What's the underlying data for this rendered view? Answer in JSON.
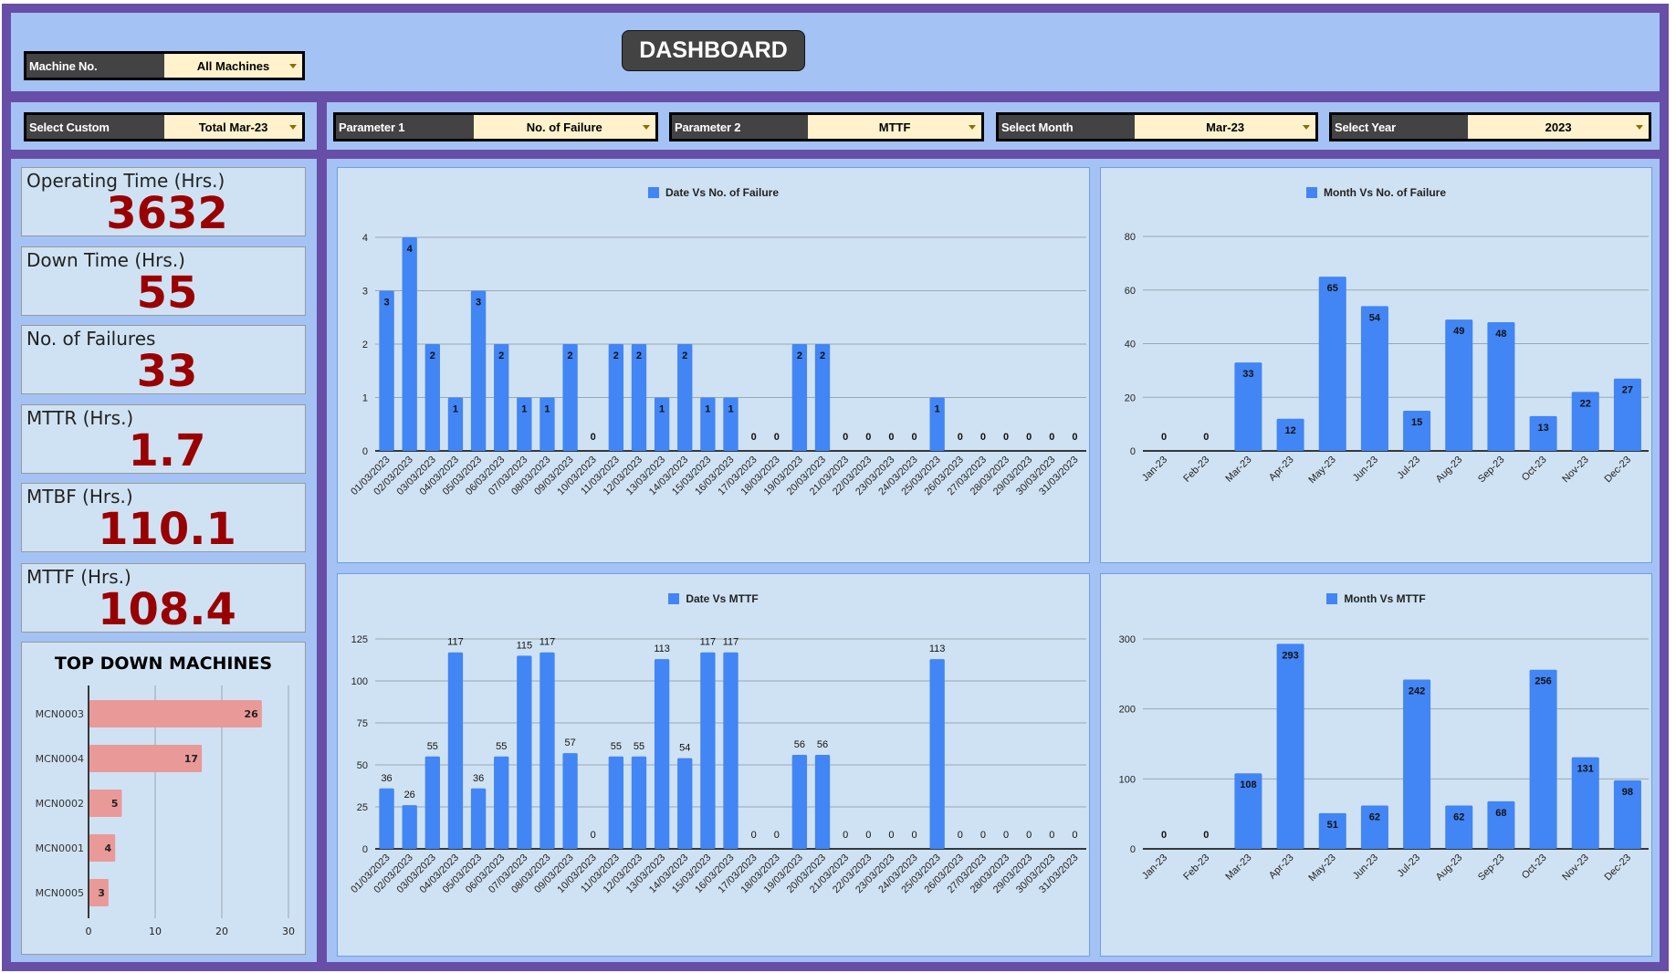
{
  "colors": {
    "frame": "#674ea7",
    "section": "#a4c2f4",
    "panel": "#cfe2f3",
    "bar": "#4285f4",
    "topdown_bar": "#ea9999",
    "kpi_value": "#990000",
    "dropdown_label": "#434343",
    "dropdown_value": "#fff2cc"
  },
  "header": {
    "title": "DASHBOARD"
  },
  "filters": {
    "machine": {
      "label": "Machine No.",
      "value": "All Machines"
    },
    "custom": {
      "label": "Select Custom",
      "value": "Total Mar-23"
    },
    "param1": {
      "label": "Parameter 1",
      "value": "No. of Failure"
    },
    "param2": {
      "label": "Parameter 2",
      "value": "MTTF"
    },
    "month": {
      "label": "Select Month",
      "value": "Mar-23"
    },
    "year": {
      "label": "Select Year",
      "value": "2023"
    }
  },
  "kpis": [
    {
      "label": "Operating Time (Hrs.)",
      "value": "3632"
    },
    {
      "label": "Down Time (Hrs.)",
      "value": "55"
    },
    {
      "label": "No. of Failures",
      "value": "33"
    },
    {
      "label": "MTTR (Hrs.)",
      "value": "1.7"
    },
    {
      "label": "MTBF (Hrs.)",
      "value": "110.1"
    },
    {
      "label": "MTTF (Hrs.)",
      "value": "108.4"
    }
  ],
  "chart_data": [
    {
      "type": "bar",
      "legend": "Date Vs No. of Failure",
      "legend_position": "top",
      "grid": true,
      "categories": [
        "01/03/2023",
        "02/03/2023",
        "03/03/2023",
        "04/03/2023",
        "05/03/2023",
        "06/03/2023",
        "07/03/2023",
        "08/03/2023",
        "09/03/2023",
        "10/03/2023",
        "11/03/2023",
        "12/03/2023",
        "13/03/2023",
        "14/03/2023",
        "15/03/2023",
        "16/03/2023",
        "17/03/2023",
        "18/03/2023",
        "19/03/2023",
        "20/03/2023",
        "21/03/2023",
        "22/03/2023",
        "23/03/2023",
        "24/03/2023",
        "25/03/2023",
        "26/03/2023",
        "27/03/2023",
        "28/03/2023",
        "29/03/2023",
        "30/03/2023",
        "31/03/2023"
      ],
      "values": [
        3,
        4,
        2,
        1,
        3,
        2,
        1,
        1,
        2,
        0,
        2,
        2,
        1,
        2,
        1,
        1,
        0,
        0,
        2,
        2,
        0,
        0,
        0,
        0,
        1,
        0,
        0,
        0,
        0,
        0,
        0
      ],
      "ylim": [
        0,
        4
      ],
      "yticks": [
        "0",
        "1",
        "2",
        "3",
        "4"
      ],
      "data_labels": "inside"
    },
    {
      "type": "bar",
      "legend": "Month Vs No. of Failure",
      "legend_position": "top",
      "grid": true,
      "categories": [
        "Jan-23",
        "Feb-23",
        "Mar-23",
        "Apr-23",
        "May-23",
        "Jun-23",
        "Jul-23",
        "Aug-23",
        "Sep-23",
        "Oct-23",
        "Nov-23",
        "Dec-23"
      ],
      "values": [
        0,
        0,
        33,
        12,
        65,
        54,
        15,
        49,
        48,
        13,
        22,
        27
      ],
      "ylim": [
        0,
        80
      ],
      "yticks": [
        "0",
        "20",
        "40",
        "60",
        "80"
      ],
      "data_labels": "inside"
    },
    {
      "type": "bar",
      "legend": "Date Vs MTTF",
      "legend_position": "top",
      "grid": true,
      "categories": [
        "01/03/2023",
        "02/03/2023",
        "03/03/2023",
        "04/03/2023",
        "05/03/2023",
        "06/03/2023",
        "07/03/2023",
        "08/03/2023",
        "09/03/2023",
        "10/03/2023",
        "11/03/2023",
        "12/03/2023",
        "13/03/2023",
        "14/03/2023",
        "15/03/2023",
        "16/03/2023",
        "17/03/2023",
        "18/03/2023",
        "19/03/2023",
        "20/03/2023",
        "21/03/2023",
        "22/03/2023",
        "23/03/2023",
        "24/03/2023",
        "25/03/2023",
        "26/03/2023",
        "27/03/2023",
        "28/03/2023",
        "29/03/2023",
        "30/03/2023",
        "31/03/2023"
      ],
      "values": [
        36,
        26,
        55,
        117,
        36,
        55,
        115,
        117,
        57,
        0,
        55,
        55,
        113,
        54,
        117,
        117,
        0,
        0,
        56,
        56,
        0,
        0,
        0,
        0,
        113,
        0,
        0,
        0,
        0,
        0,
        0
      ],
      "ylim": [
        0,
        125
      ],
      "yticks": [
        "0",
        "25",
        "50",
        "75",
        "100",
        "125"
      ],
      "data_labels": "above"
    },
    {
      "type": "bar",
      "legend": "Month Vs MTTF",
      "legend_position": "top",
      "grid": true,
      "categories": [
        "Jan-23",
        "Feb-23",
        "Mar-23",
        "Apr-23",
        "May-23",
        "Jun-23",
        "Jul-23",
        "Aug-23",
        "Sep-23",
        "Oct-23",
        "Nov-23",
        "Dec-23"
      ],
      "values": [
        0,
        0,
        108,
        293,
        51,
        62,
        242,
        62,
        68,
        256,
        131,
        98
      ],
      "ylim": [
        0,
        300
      ],
      "yticks": [
        "0",
        "100",
        "200",
        "300"
      ],
      "data_labels": "inside"
    },
    {
      "type": "bar",
      "orientation": "horizontal",
      "title": "TOP DOWN MACHINES",
      "grid": true,
      "categories": [
        "MCN0003",
        "MCN0004",
        "MCN0002",
        "MCN0001",
        "MCN0005"
      ],
      "values": [
        26,
        17,
        5,
        4,
        3
      ],
      "xlim": [
        0,
        30
      ],
      "xticks": [
        "0",
        "10",
        "20",
        "30"
      ],
      "data_labels": "inside-end"
    }
  ]
}
